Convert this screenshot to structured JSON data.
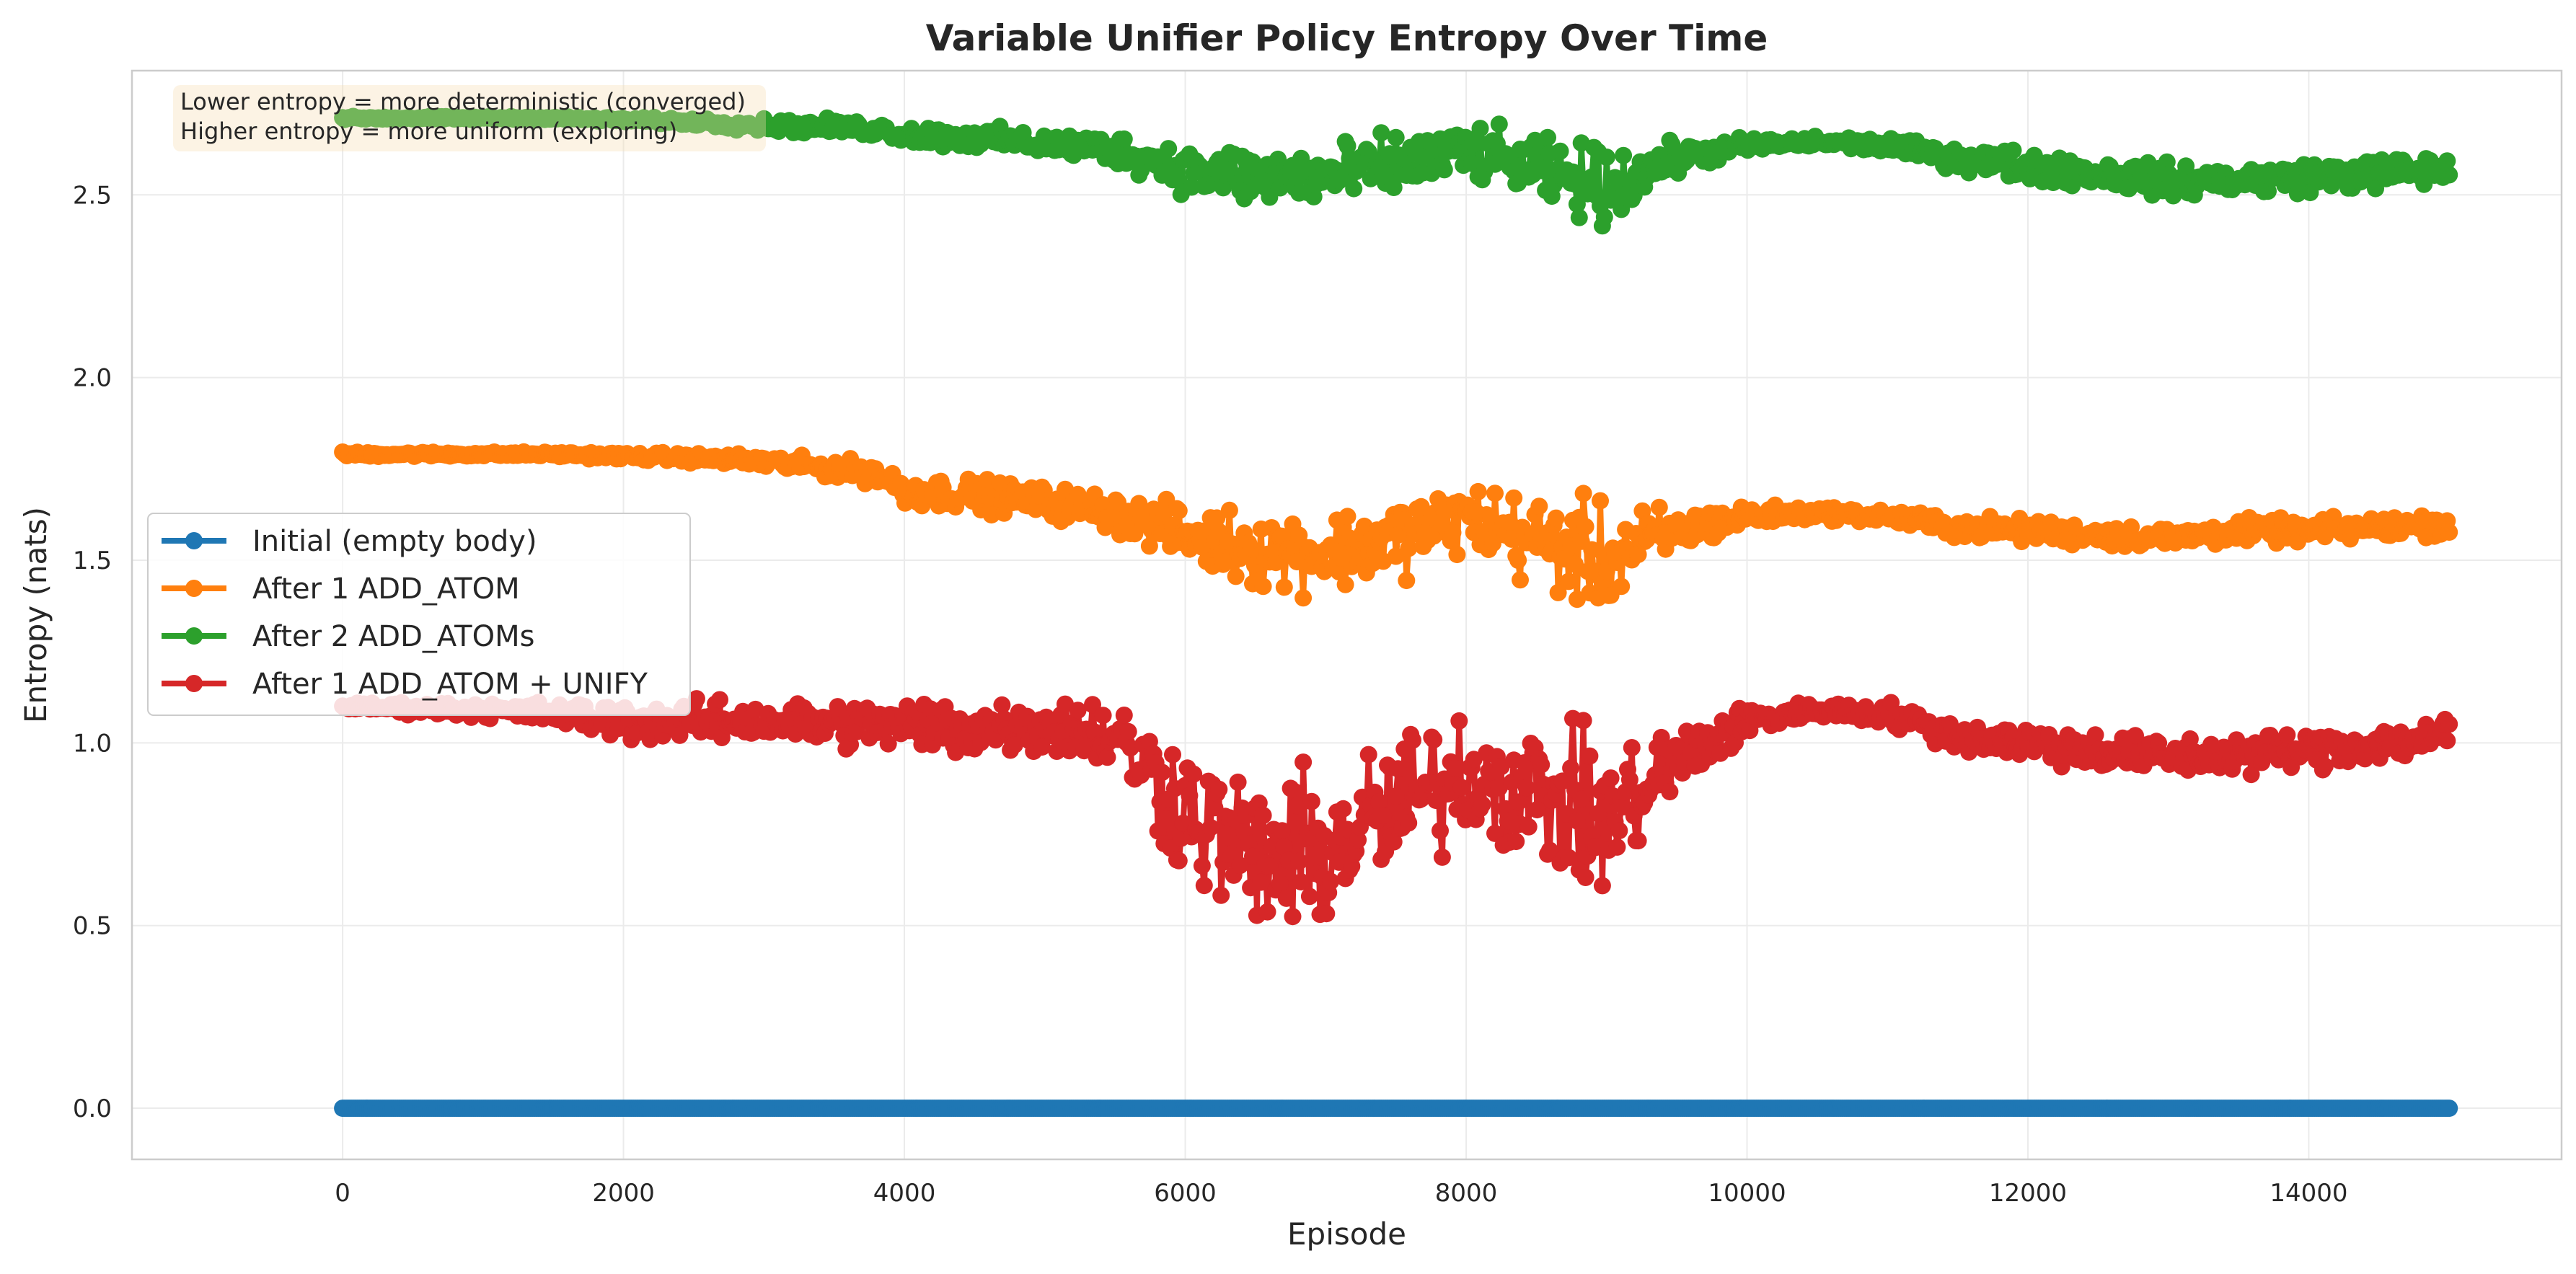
{
  "chart_data": {
    "type": "line",
    "title": "Variable Unifier Policy Entropy Over Time",
    "xlabel": "Episode",
    "ylabel": "Entropy (nats)",
    "xlim": [
      -1500,
      15800
    ],
    "ylim": [
      -0.14,
      2.84
    ],
    "xticks": [
      0,
      2000,
      4000,
      6000,
      8000,
      10000,
      12000,
      14000
    ],
    "yticks": [
      0.0,
      0.5,
      1.0,
      1.5,
      2.0,
      2.5
    ],
    "xtick_labels": [
      "0",
      "2000",
      "4000",
      "6000",
      "8000",
      "10000",
      "12000",
      "14000"
    ],
    "ytick_labels": [
      "0.0",
      "0.5",
      "1.0",
      "1.5",
      "2.0",
      "2.5"
    ],
    "grid": true,
    "legend_position": "center-left",
    "annotation": [
      "Lower entropy = more deterministic (converged)",
      "Higher entropy = more uniform (exploring)"
    ],
    "x": [
      0,
      500,
      1000,
      1500,
      2000,
      2500,
      3000,
      3500,
      3800,
      4000,
      4500,
      5000,
      5500,
      6000,
      6500,
      7000,
      7500,
      8000,
      8500,
      9000,
      9500,
      10000,
      10500,
      11000,
      11500,
      12000,
      12500,
      13000,
      13500,
      14000,
      14500,
      15000
    ],
    "series": [
      {
        "name": "Initial (empty body)",
        "color": "#1f77b4",
        "values": [
          0.0,
          0.0,
          0.0,
          0.0,
          0.0,
          0.0,
          0.0,
          0.0,
          0.0,
          0.0,
          0.0,
          0.0,
          0.0,
          0.0,
          0.0,
          0.0,
          0.0,
          0.0,
          0.0,
          0.0,
          0.0,
          0.0,
          0.0,
          0.0,
          0.0,
          0.0,
          0.0,
          0.0,
          0.0,
          0.0,
          0.0,
          0.0
        ],
        "noise": [
          0,
          0,
          0,
          0,
          0,
          0,
          0,
          0,
          0,
          0,
          0,
          0,
          0,
          0,
          0,
          0,
          0,
          0,
          0,
          0,
          0,
          0,
          0,
          0,
          0,
          0,
          0,
          0,
          0,
          0,
          0,
          0
        ]
      },
      {
        "name": "After 1 ADD_ATOM",
        "color": "#ff7f0e",
        "values": [
          1.79,
          1.79,
          1.79,
          1.79,
          1.785,
          1.78,
          1.77,
          1.75,
          1.74,
          1.69,
          1.68,
          1.66,
          1.63,
          1.57,
          1.53,
          1.52,
          1.56,
          1.62,
          1.55,
          1.5,
          1.58,
          1.62,
          1.63,
          1.62,
          1.59,
          1.58,
          1.57,
          1.56,
          1.58,
          1.58,
          1.59,
          1.6
        ],
        "noise": [
          0.003,
          0.003,
          0.003,
          0.003,
          0.005,
          0.006,
          0.01,
          0.012,
          0.015,
          0.02,
          0.02,
          0.02,
          0.025,
          0.035,
          0.05,
          0.05,
          0.05,
          0.045,
          0.06,
          0.07,
          0.03,
          0.015,
          0.008,
          0.01,
          0.015,
          0.015,
          0.015,
          0.015,
          0.015,
          0.015,
          0.015,
          0.015
        ]
      },
      {
        "name": "After 2 ADD_ATOMs",
        "color": "#2ca02c",
        "values": [
          2.71,
          2.71,
          2.71,
          2.71,
          2.705,
          2.7,
          2.69,
          2.685,
          2.68,
          2.665,
          2.655,
          2.64,
          2.625,
          2.57,
          2.55,
          2.55,
          2.58,
          2.62,
          2.57,
          2.52,
          2.6,
          2.635,
          2.645,
          2.635,
          2.6,
          2.58,
          2.56,
          2.54,
          2.54,
          2.55,
          2.56,
          2.57
        ],
        "noise": [
          0.002,
          0.002,
          0.002,
          0.002,
          0.003,
          0.005,
          0.008,
          0.01,
          0.01,
          0.012,
          0.015,
          0.015,
          0.02,
          0.03,
          0.04,
          0.04,
          0.04,
          0.035,
          0.04,
          0.05,
          0.02,
          0.01,
          0.008,
          0.01,
          0.015,
          0.02,
          0.02,
          0.02,
          0.02,
          0.02,
          0.02,
          0.02
        ]
      },
      {
        "name": "After 1 ADD_ATOM + UNIFY",
        "color": "#d62728",
        "values": [
          1.1,
          1.095,
          1.09,
          1.08,
          1.06,
          1.06,
          1.06,
          1.05,
          1.05,
          1.05,
          1.04,
          1.05,
          1.02,
          0.82,
          0.68,
          0.7,
          0.82,
          0.92,
          0.86,
          0.78,
          0.95,
          1.06,
          1.09,
          1.08,
          1.02,
          1.0,
          0.98,
          0.96,
          0.97,
          0.98,
          1.0,
          1.02
        ],
        "noise": [
          0.004,
          0.008,
          0.01,
          0.015,
          0.025,
          0.025,
          0.025,
          0.03,
          0.03,
          0.035,
          0.04,
          0.035,
          0.05,
          0.09,
          0.1,
          0.1,
          0.1,
          0.08,
          0.09,
          0.1,
          0.05,
          0.02,
          0.01,
          0.015,
          0.02,
          0.025,
          0.025,
          0.025,
          0.025,
          0.025,
          0.025,
          0.025
        ]
      }
    ]
  }
}
